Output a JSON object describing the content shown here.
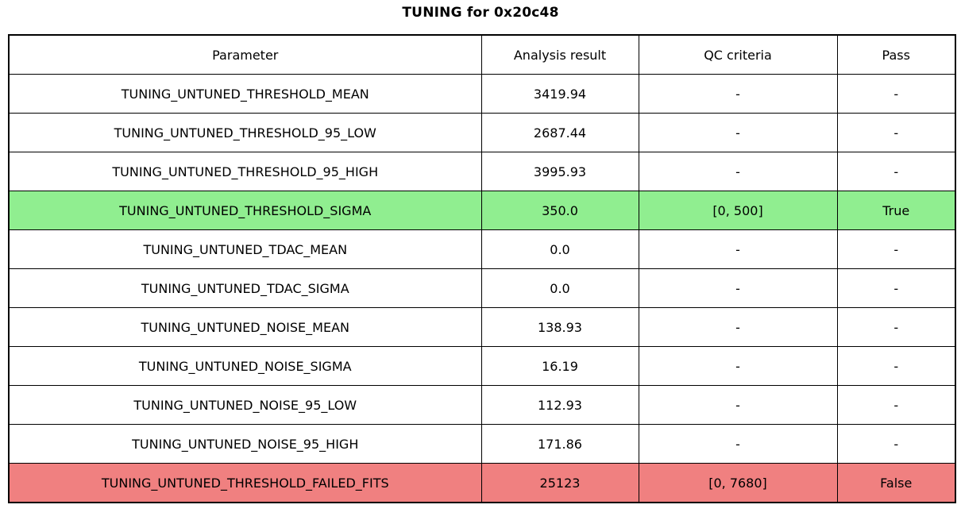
{
  "chart_data": {
    "type": "table",
    "title": "TUNING for 0x20c48",
    "columns": [
      "Parameter",
      "Analysis result",
      "QC criteria",
      "Pass"
    ],
    "rows": [
      {
        "cells": [
          "TUNING_UNTUNED_THRESHOLD_MEAN",
          "3419.94",
          "-",
          "-"
        ],
        "status": "none"
      },
      {
        "cells": [
          "TUNING_UNTUNED_THRESHOLD_95_LOW",
          "2687.44",
          "-",
          "-"
        ],
        "status": "none"
      },
      {
        "cells": [
          "TUNING_UNTUNED_THRESHOLD_95_HIGH",
          "3995.93",
          "-",
          "-"
        ],
        "status": "none"
      },
      {
        "cells": [
          "TUNING_UNTUNED_THRESHOLD_SIGMA",
          "350.0",
          "[0, 500]",
          "True"
        ],
        "status": "pass"
      },
      {
        "cells": [
          "TUNING_UNTUNED_TDAC_MEAN",
          "0.0",
          "-",
          "-"
        ],
        "status": "none"
      },
      {
        "cells": [
          "TUNING_UNTUNED_TDAC_SIGMA",
          "0.0",
          "-",
          "-"
        ],
        "status": "none"
      },
      {
        "cells": [
          "TUNING_UNTUNED_NOISE_MEAN",
          "138.93",
          "-",
          "-"
        ],
        "status": "none"
      },
      {
        "cells": [
          "TUNING_UNTUNED_NOISE_SIGMA",
          "16.19",
          "-",
          "-"
        ],
        "status": "none"
      },
      {
        "cells": [
          "TUNING_UNTUNED_NOISE_95_LOW",
          "112.93",
          "-",
          "-"
        ],
        "status": "none"
      },
      {
        "cells": [
          "TUNING_UNTUNED_NOISE_95_HIGH",
          "171.86",
          "-",
          "-"
        ],
        "status": "none"
      },
      {
        "cells": [
          "TUNING_UNTUNED_THRESHOLD_FAILED_FITS",
          "25123",
          "[0, 7680]",
          "False"
        ],
        "status": "fail"
      }
    ],
    "colors": {
      "pass_row_bg": "#90ee90",
      "fail_row_bg": "#f08080",
      "border": "#000000",
      "text": "#000000",
      "background": "#ffffff"
    },
    "layout": {
      "grid": "on",
      "cell_text_align": "center"
    }
  }
}
